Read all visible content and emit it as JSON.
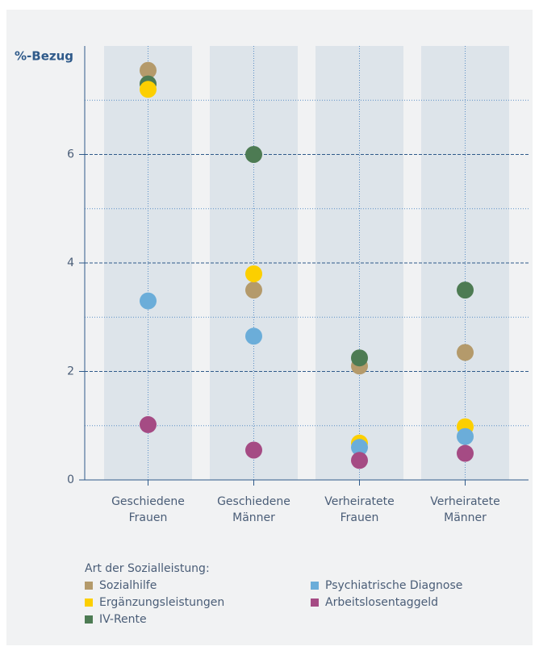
{
  "chart_data": {
    "type": "scatter",
    "y_label": "%-Bezug",
    "categories": [
      [
        "Geschiedene",
        "Frauen"
      ],
      [
        "Geschiedene",
        "Männer"
      ],
      [
        "Verheiratete",
        "Frauen"
      ],
      [
        "Verheiratete",
        "Männer"
      ]
    ],
    "series": [
      {
        "name": "Sozialhilfe",
        "color": "#b49a6b",
        "values": [
          7.55,
          3.5,
          2.1,
          2.35
        ]
      },
      {
        "name": "Ergänzungsleistungen",
        "color": "#fccf00",
        "values": [
          7.2,
          3.8,
          0.68,
          0.98
        ]
      },
      {
        "name": "IV-Rente",
        "color": "#4d7b53",
        "values": [
          7.3,
          6.0,
          2.25,
          3.5
        ]
      },
      {
        "name": "Psychiatrische Diagnose",
        "color": "#6badd9",
        "values": [
          3.3,
          2.65,
          0.6,
          0.8
        ]
      },
      {
        "name": "Arbeitslosentaggeld",
        "color": "#a54b84",
        "values": [
          1.02,
          0.55,
          0.36,
          0.49
        ]
      }
    ],
    "legend_title": "Art der Sozialleistung:",
    "ylim": [
      0,
      8
    ],
    "yticks": [
      0,
      2,
      4,
      6
    ],
    "minor_yticks": [
      1,
      3,
      5,
      7
    ],
    "grid": true
  }
}
